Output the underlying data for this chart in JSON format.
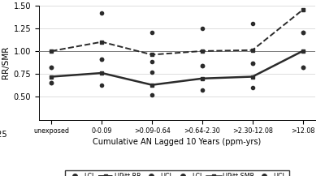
{
  "x_labels": [
    "unexposed",
    "0-0.09",
    ">0.09-0.64",
    ">0.64-2.30",
    ">2.30-12.08",
    ">12.08"
  ],
  "x_positions": [
    0,
    1,
    2,
    3,
    4,
    5
  ],
  "rr_main": [
    1.0,
    1.1,
    0.96,
    1.0,
    1.01,
    1.45
  ],
  "rr_ucl": [
    0.82,
    1.42,
    1.2,
    1.25,
    1.3,
    1.2
  ],
  "rr_lcl": [
    0.65,
    0.91,
    0.88,
    0.84,
    0.87,
    0.82
  ],
  "smr_main": [
    0.72,
    0.76,
    0.63,
    0.7,
    0.72,
    1.0
  ],
  "smr_ucl": [
    0.82,
    0.91,
    0.77,
    0.84,
    0.87,
    1.2
  ],
  "smr_lcl": [
    0.65,
    0.63,
    0.52,
    0.57,
    0.6,
    0.82
  ],
  "ylim": [
    0.25,
    1.5
  ],
  "yticks": [
    0.5,
    0.75,
    1.0,
    1.25,
    1.5
  ],
  "ylabel": "RR/SMR",
  "xlabel": "Cumulative AN Lagged 10 Years (ppm-yrs)",
  "ref_line": 1.0,
  "line_color": "#2b2b2b",
  "dot_color": "#2b2b2b",
  "grid_color": "#d0d0d0"
}
